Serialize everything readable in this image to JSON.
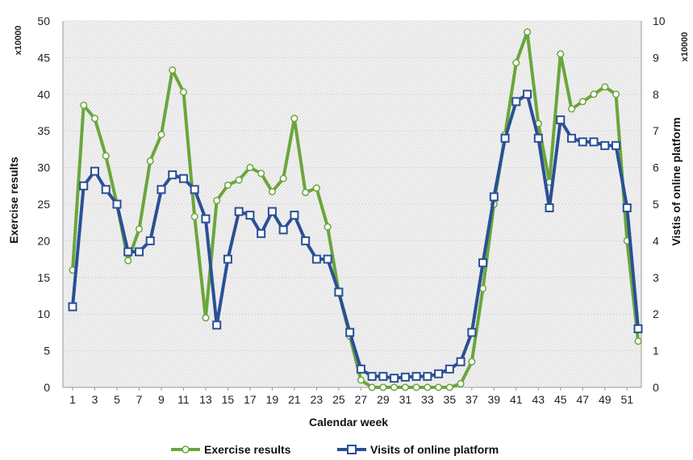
{
  "chart_data": {
    "type": "line",
    "xlabel": "Calendar week",
    "ylabel": "Exercise results",
    "y2label": "Vistis of online platform",
    "y_multiplier": "x10000",
    "y2_multiplier": "x10000",
    "xlim": [
      1,
      52
    ],
    "ylim": [
      0,
      50
    ],
    "y2lim": [
      0,
      10
    ],
    "x_ticks": [
      1,
      3,
      5,
      7,
      9,
      11,
      13,
      15,
      17,
      19,
      21,
      23,
      25,
      27,
      29,
      31,
      33,
      35,
      37,
      39,
      41,
      43,
      45,
      47,
      49,
      51
    ],
    "y_ticks": [
      0,
      5,
      10,
      15,
      20,
      25,
      30,
      35,
      40,
      45,
      50
    ],
    "y2_ticks": [
      0,
      1,
      2,
      3,
      4,
      5,
      6,
      7,
      8,
      9,
      10
    ],
    "grid": "hatched background",
    "legend": "bottom",
    "colors": {
      "exercise": "#6aa63c",
      "visits": "#2b4f96"
    },
    "series": [
      {
        "name": "Exercise results",
        "axis": "left",
        "marker": "circle",
        "x": [
          1,
          2,
          3,
          4,
          5,
          6,
          7,
          8,
          9,
          10,
          11,
          12,
          13,
          14,
          15,
          16,
          17,
          18,
          19,
          20,
          21,
          22,
          23,
          24,
          25,
          26,
          27,
          28,
          29,
          30,
          31,
          32,
          33,
          34,
          35,
          36,
          37,
          38,
          39,
          40,
          41,
          42,
          43,
          44,
          45,
          46,
          47,
          48,
          49,
          50,
          51,
          52
        ],
        "values": [
          16,
          38.5,
          36.7,
          31.6,
          25,
          17.3,
          21.6,
          30.9,
          34.5,
          43.3,
          40.3,
          23.3,
          9.5,
          25.5,
          27.6,
          28.3,
          30,
          29.2,
          26.7,
          28.5,
          36.7,
          26.6,
          27.2,
          21.9,
          13,
          7,
          1,
          0,
          0,
          0,
          0,
          0,
          0,
          0,
          0,
          0.5,
          3.5,
          13.5,
          25,
          34.5,
          44.3,
          48.5,
          36,
          28,
          45.5,
          38,
          39,
          40,
          41,
          40,
          20,
          6.3
        ]
      },
      {
        "name": "Visits of online platform",
        "axis": "right",
        "marker": "square",
        "x": [
          1,
          2,
          3,
          4,
          5,
          6,
          7,
          8,
          9,
          10,
          11,
          12,
          13,
          14,
          15,
          16,
          17,
          18,
          19,
          20,
          21,
          22,
          23,
          24,
          25,
          26,
          27,
          28,
          29,
          30,
          31,
          32,
          33,
          34,
          35,
          36,
          37,
          38,
          39,
          40,
          41,
          42,
          43,
          44,
          45,
          46,
          47,
          48,
          49,
          50,
          51,
          52
        ],
        "values": [
          2.2,
          5.5,
          5.9,
          5.4,
          5,
          3.7,
          3.7,
          4,
          5.4,
          5.8,
          5.7,
          5.4,
          4.6,
          1.7,
          3.5,
          4.8,
          4.7,
          4.2,
          4.8,
          4.3,
          4.7,
          4,
          3.5,
          3.5,
          2.6,
          1.5,
          0.5,
          0.3,
          0.3,
          0.25,
          0.28,
          0.3,
          0.3,
          0.37,
          0.5,
          0.7,
          1.5,
          3.4,
          5.2,
          6.8,
          7.8,
          8,
          6.8,
          4.9,
          7.3,
          6.8,
          6.7,
          6.7,
          6.6,
          6.6,
          4.9,
          1.6
        ]
      }
    ]
  }
}
